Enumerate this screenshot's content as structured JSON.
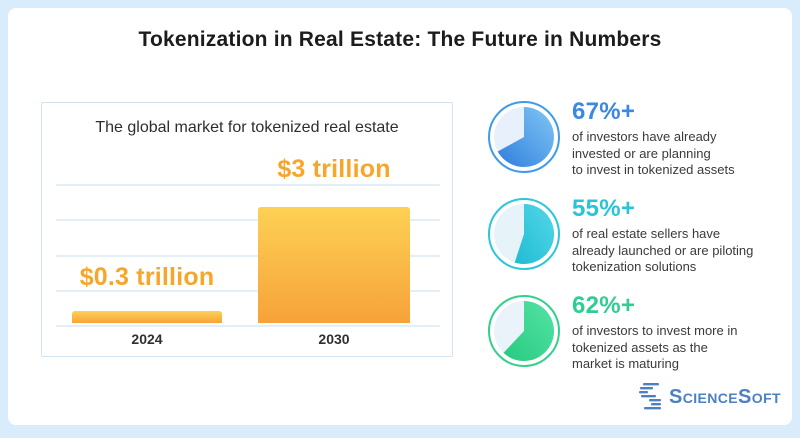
{
  "page": {
    "title": "Tokenization in Real Estate: The Future in Numbers",
    "frame_color": "#d9ecfb"
  },
  "chart_data": {
    "type": "bar",
    "title": "The global market for tokenized real estate",
    "categories": [
      "2024",
      "2030"
    ],
    "values": [
      0.3,
      3
    ],
    "value_labels": [
      "$0.3 trillion",
      "$3 trillion"
    ],
    "unit": "trillion USD",
    "ylim": [
      0,
      3
    ],
    "grid": true,
    "bar_color_top": "#fdd154",
    "bar_color_bottom": "#f7a23a",
    "label_color": "#f8a62b"
  },
  "stats": [
    {
      "value": "67%+",
      "percent": 67,
      "color": "#3c87e0",
      "ring": "#3e9bea",
      "base": "#e8f1fb",
      "grad_from": "#82c6f5",
      "grad_to": "#2e7fdd",
      "text": "of investors have already\ninvested or are planning\nto invest in tokenized assets"
    },
    {
      "value": "55%+",
      "percent": 55,
      "color": "#2bc3d8",
      "ring": "#2cc6d8",
      "base": "#e6f3f9",
      "grad_from": "#55d7e7",
      "grad_to": "#1fbcd4",
      "text": "of real estate sellers have\nalready launched or are piloting\ntokenization solutions"
    },
    {
      "value": "62%+",
      "percent": 62,
      "color": "#2fcd90",
      "ring": "#33d08c",
      "base": "#eaf2fa",
      "grad_from": "#55e3a5",
      "grad_to": "#26ca80",
      "text": "of investors to invest more in\ntokenized assets as the\nmarket is maturing"
    }
  ],
  "footer": {
    "brand": "ScienceSoft",
    "brand_color": "#4c80c2"
  }
}
